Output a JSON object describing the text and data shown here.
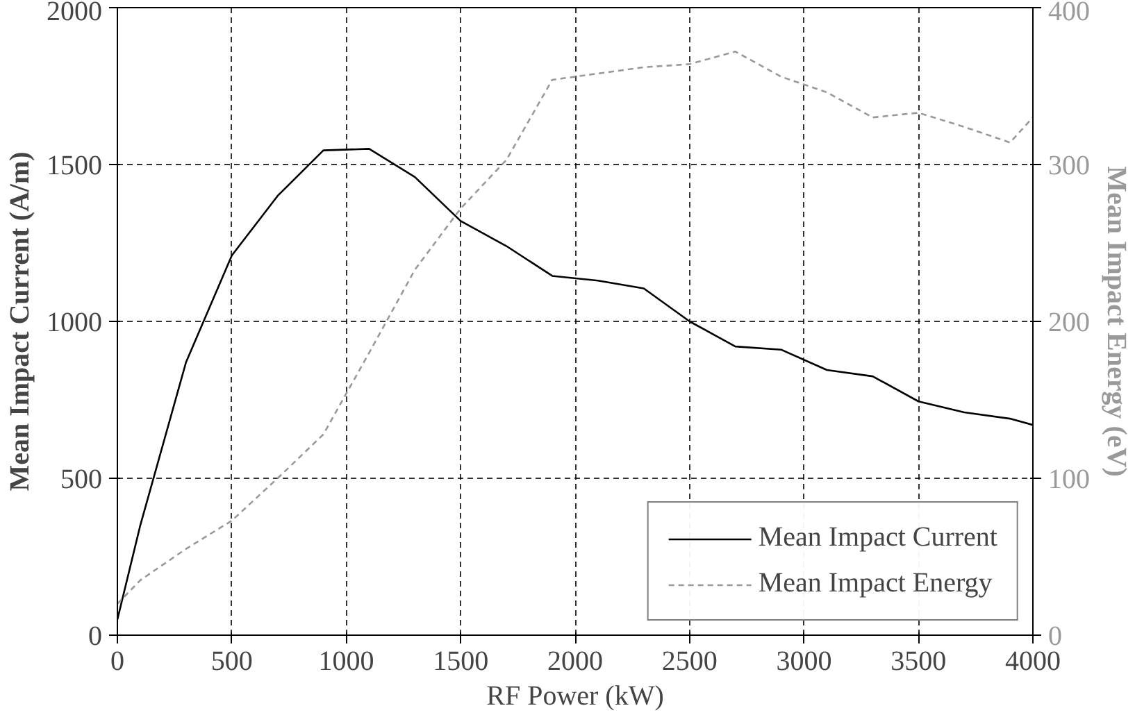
{
  "chart_data": {
    "type": "line",
    "xlabel": "RF Power (kW)",
    "ylabel": "Mean Impact Current (A/m)",
    "y2label": "Mean Impact Energy (eV)",
    "xlim": [
      0,
      4000
    ],
    "xticks": [
      0,
      500,
      1000,
      1500,
      2000,
      2500,
      3000,
      3500,
      4000
    ],
    "ylim": [
      0,
      2000
    ],
    "yticks": [
      0,
      500,
      1000,
      1500,
      2000
    ],
    "y2lim": [
      0,
      400
    ],
    "y2ticks": [
      0,
      100,
      200,
      300,
      400
    ],
    "grid": true,
    "legend": "bottom right",
    "series": [
      {
        "name": "Mean Impact Current",
        "color": "#000000",
        "line_style": "solid",
        "x": [
          0,
          100,
          300,
          500,
          700,
          900,
          1100,
          1300,
          1500,
          1700,
          1900,
          2100,
          2300,
          2500,
          2700,
          2900,
          3100,
          3300,
          3500,
          3700,
          3900,
          4000
        ],
        "values": [
          50,
          350,
          870,
          1210,
          1400,
          1545,
          1550,
          1460,
          1320,
          1240,
          1145,
          1130,
          1105,
          1000,
          920,
          910,
          845,
          825,
          745,
          710,
          690,
          670
        ]
      },
      {
        "name": "Mean Impact Energy",
        "color": "#999999",
        "line_style": "dashed",
        "axis": "y2",
        "x": [
          0,
          100,
          300,
          500,
          700,
          900,
          1100,
          1300,
          1500,
          1700,
          1900,
          2100,
          2300,
          2500,
          2700,
          2900,
          3100,
          3300,
          3500,
          3700,
          3900,
          4000
        ],
        "values": [
          20,
          35,
          55,
          73,
          100,
          128,
          180,
          233,
          272,
          303,
          354,
          358,
          362,
          364,
          372,
          356,
          346,
          330,
          333,
          324,
          314,
          330
        ]
      }
    ]
  }
}
